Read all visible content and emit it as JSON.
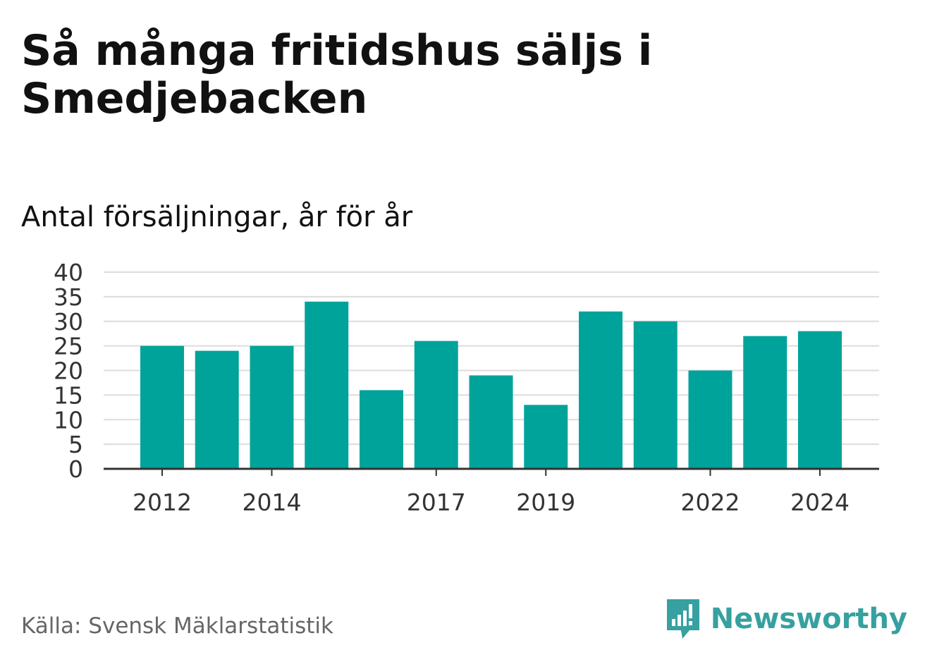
{
  "title": "Så många fritidshus säljs i Smedjebacken",
  "subtitle": "Antal försäljningar, år för år",
  "source": "Källa: Svensk Mäklarstatistik",
  "brand": {
    "name": "Newsworthy",
    "logo_icon": "bar-chart-speech-bubble-icon"
  },
  "colors": {
    "bar": "#00a39a",
    "grid": "#dcdcdc",
    "axis": "#333333",
    "brand": "#37a0a0"
  },
  "chart_data": {
    "type": "bar",
    "categories": [
      "2012",
      "2013",
      "2014",
      "2015",
      "2016",
      "2017",
      "2018",
      "2019",
      "2020",
      "2021",
      "2022",
      "2023",
      "2024"
    ],
    "values": [
      25,
      24,
      25,
      34,
      16,
      26,
      19,
      13,
      32,
      30,
      20,
      27,
      28
    ],
    "x_tick_labels": [
      "2012",
      "2014",
      "2017",
      "2019",
      "2022",
      "2024"
    ],
    "y_ticks": [
      0,
      5,
      10,
      15,
      20,
      25,
      30,
      35,
      40
    ],
    "ylim": [
      0,
      40
    ],
    "grid": true,
    "legend": "none"
  }
}
